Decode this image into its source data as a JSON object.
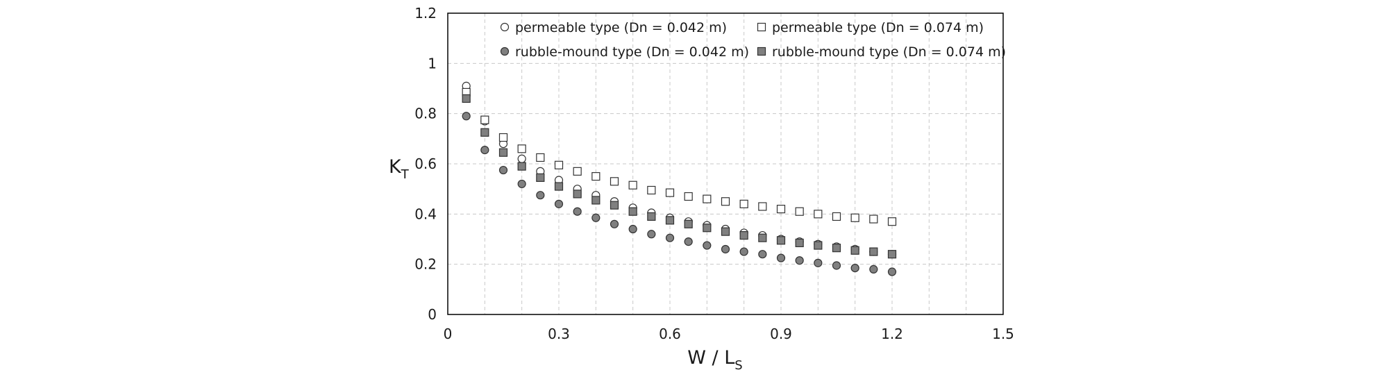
{
  "chart_data": {
    "type": "scatter",
    "xlabel_main": "W / L",
    "xlabel_sub": "S",
    "ylabel_main": "K",
    "ylabel_sub": "T",
    "xlim": [
      0,
      1.5
    ],
    "ylim": [
      0,
      1.2
    ],
    "x_ticks": [
      "0",
      "0.3",
      "0.6",
      "0.9",
      "1.2",
      "1.5"
    ],
    "x_tick_values": [
      0,
      0.3,
      0.6,
      0.9,
      1.2,
      1.5
    ],
    "y_ticks": [
      "0",
      "0.2",
      "0.4",
      "0.6",
      "0.8",
      "1",
      "1.2"
    ],
    "y_tick_values": [
      0,
      0.2,
      0.4,
      0.6,
      0.8,
      1.0,
      1.2
    ],
    "grid": true,
    "legend_position": "top, inside plot",
    "x": [
      0.05,
      0.1,
      0.15,
      0.2,
      0.25,
      0.3,
      0.35,
      0.4,
      0.45,
      0.5,
      0.55,
      0.6,
      0.65,
      0.7,
      0.75,
      0.8,
      0.85,
      0.9,
      0.95,
      1.0,
      1.05,
      1.1,
      1.15,
      1.2
    ],
    "series": [
      {
        "name": "permeable type (Dn = 0.042 m)",
        "marker": "circle",
        "fill": "#ffffff",
        "values": [
          0.91,
          0.77,
          0.68,
          0.62,
          0.57,
          0.535,
          0.5,
          0.475,
          0.45,
          0.425,
          0.405,
          0.385,
          0.37,
          0.355,
          0.34,
          0.325,
          0.315,
          0.3,
          0.29,
          0.28,
          0.27,
          0.26,
          0.25,
          0.24
        ]
      },
      {
        "name": "permeable type (Dn = 0.074 m)",
        "marker": "square",
        "fill": "#ffffff",
        "values": [
          0.885,
          0.775,
          0.705,
          0.66,
          0.625,
          0.595,
          0.57,
          0.55,
          0.53,
          0.515,
          0.495,
          0.485,
          0.47,
          0.46,
          0.45,
          0.44,
          0.43,
          0.42,
          0.41,
          0.4,
          0.39,
          0.385,
          0.38,
          0.37
        ]
      },
      {
        "name": "rubble-mound type (Dn = 0.042 m)",
        "marker": "circle",
        "fill": "#808080",
        "values": [
          0.79,
          0.655,
          0.575,
          0.52,
          0.475,
          0.44,
          0.41,
          0.385,
          0.36,
          0.34,
          0.32,
          0.305,
          0.29,
          0.275,
          0.26,
          0.25,
          0.24,
          0.225,
          0.215,
          0.205,
          0.195,
          0.185,
          0.18,
          0.17
        ]
      },
      {
        "name": "rubble-mound type (Dn = 0.074 m)",
        "marker": "square",
        "fill": "#808080",
        "values": [
          0.86,
          0.725,
          0.645,
          0.59,
          0.545,
          0.51,
          0.48,
          0.455,
          0.435,
          0.41,
          0.39,
          0.375,
          0.36,
          0.345,
          0.33,
          0.315,
          0.305,
          0.295,
          0.285,
          0.275,
          0.265,
          0.255,
          0.25,
          0.24
        ]
      }
    ]
  }
}
